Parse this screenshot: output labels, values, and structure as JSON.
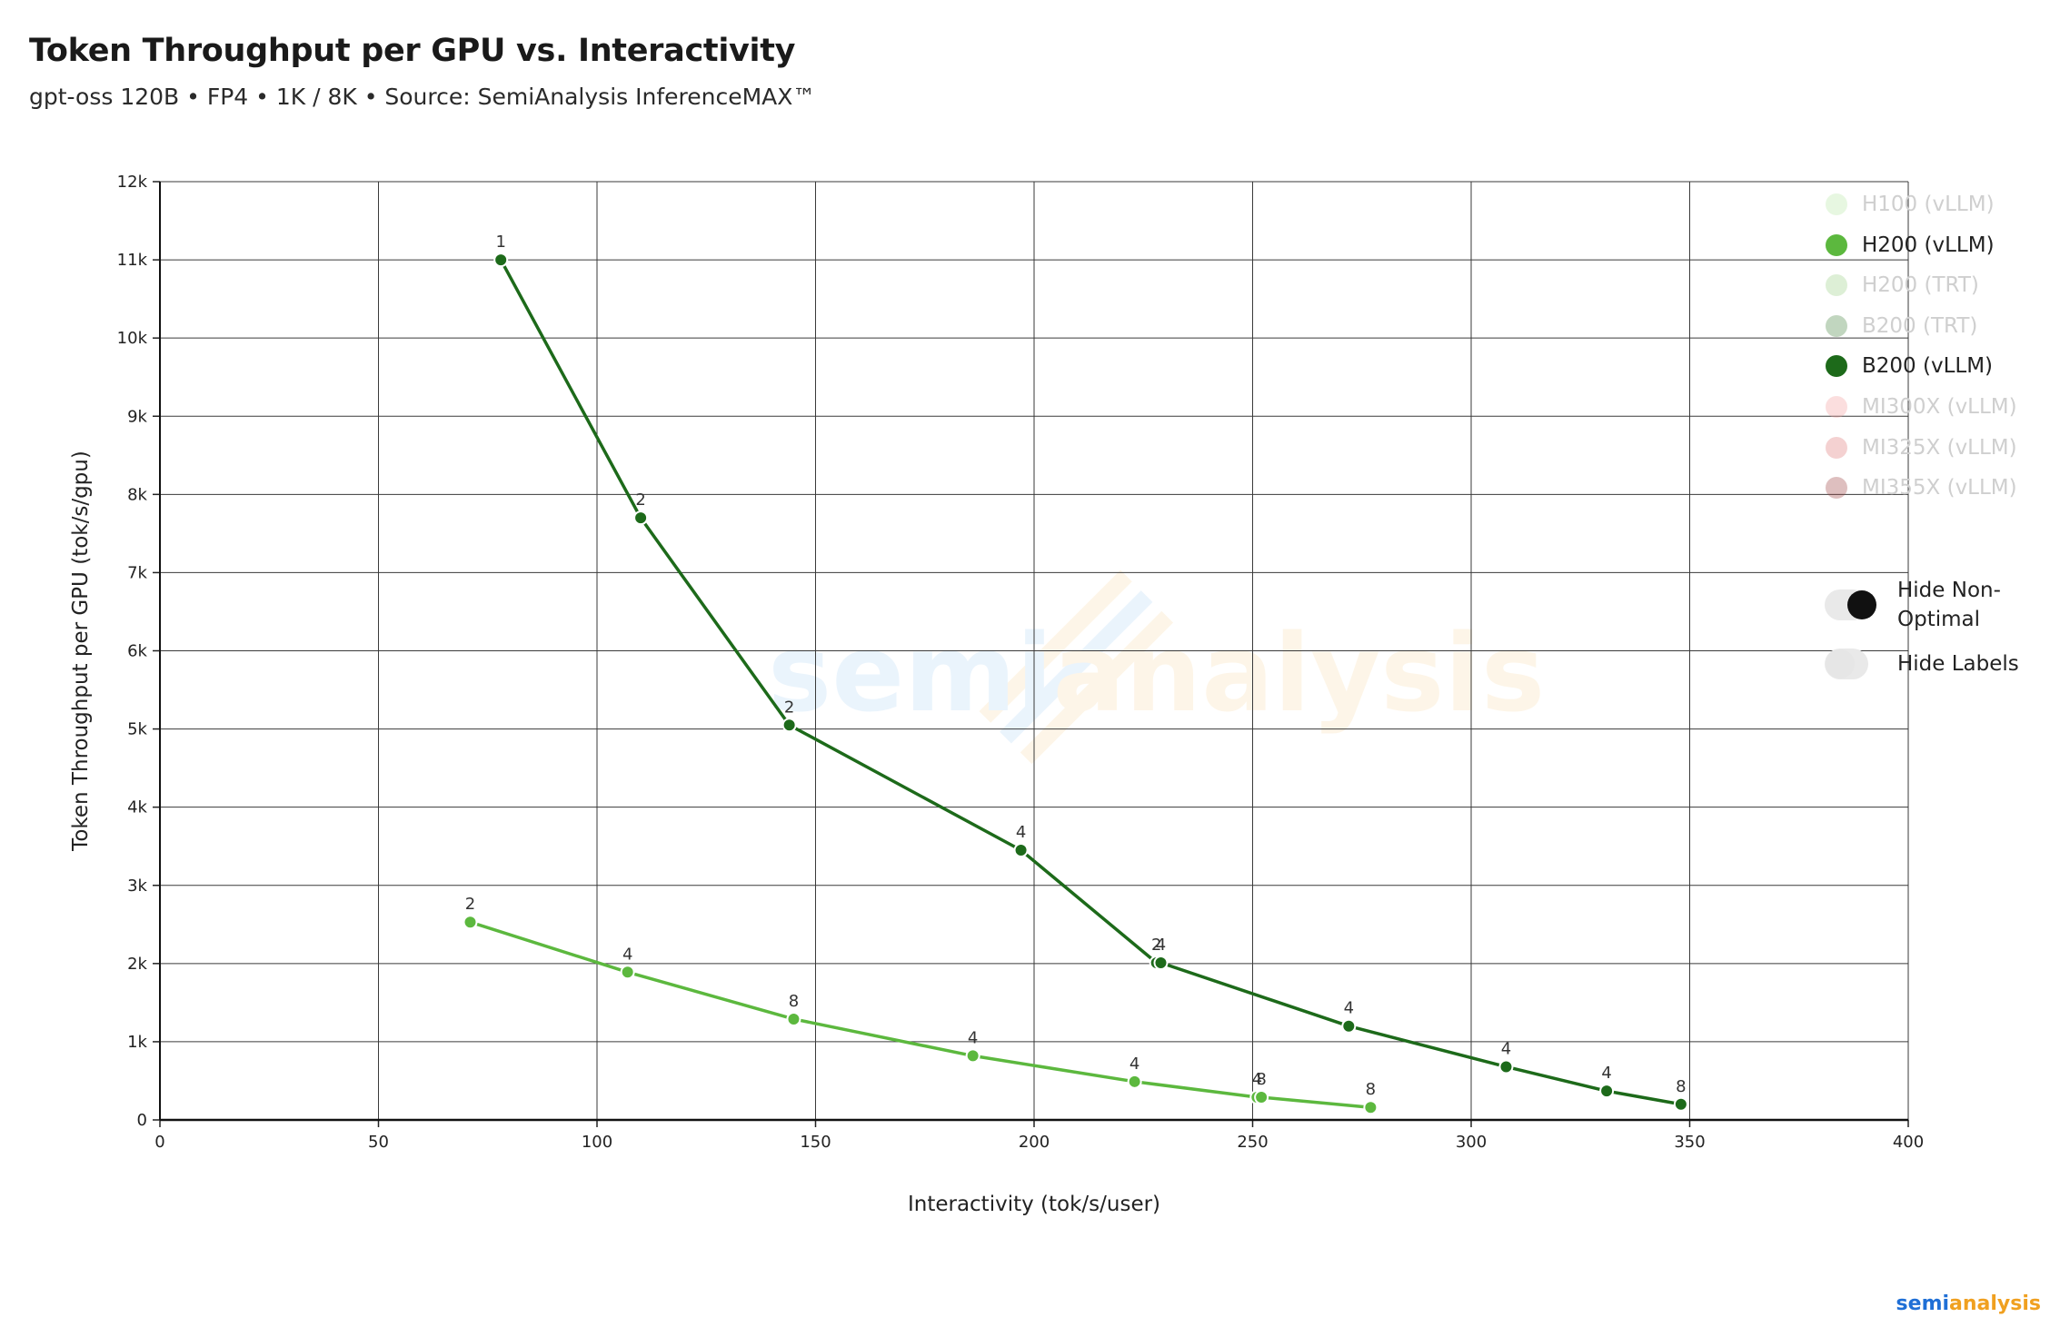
{
  "header": {
    "title": "Token Throughput per GPU vs. Interactivity",
    "subtitle": "gpt-oss 120B • FP4 • 1K / 8K • Source: SemiAnalysis InferenceMAX™"
  },
  "legend": {
    "items": [
      {
        "label": "H100 (vLLM)",
        "color": "#b9e8a8",
        "active": false
      },
      {
        "label": "H200 (vLLM)",
        "color": "#5cb83e",
        "active": true
      },
      {
        "label": "H200 (TRT)",
        "color": "#9ed08a",
        "active": false
      },
      {
        "label": "B200 (TRT)",
        "color": "#4c8a48",
        "active": false
      },
      {
        "label": "B200 (vLLM)",
        "color": "#1d6a1a",
        "active": true
      },
      {
        "label": "MI300X (vLLM)",
        "color": "#f4a0a0",
        "active": false
      },
      {
        "label": "MI325X (vLLM)",
        "color": "#e07a7a",
        "active": false
      },
      {
        "label": "MI355X (vLLM)",
        "color": "#a04848",
        "active": false
      }
    ]
  },
  "toggles": [
    {
      "label": "Hide Non-Optimal",
      "on": true,
      "knob_color": "#111111"
    },
    {
      "label": "Hide Labels",
      "on": false,
      "knob_color": "#e6e6e6"
    }
  ],
  "watermark": {
    "part1": "semi",
    "part2": "analysis"
  },
  "logo": {
    "part1": "semi",
    "part2": "analysis",
    "color1": "#1f6fd6",
    "color2": "#f0a020"
  },
  "chart_data": {
    "type": "line",
    "xlabel": "Interactivity (tok/s/user)",
    "ylabel": "Token Throughput per GPU (tok/s/gpu)",
    "xlim": [
      0,
      400
    ],
    "ylim": [
      0,
      12000
    ],
    "xticks": [
      0,
      50,
      100,
      150,
      200,
      250,
      300,
      350,
      400
    ],
    "yticks": [
      0,
      1000,
      2000,
      3000,
      4000,
      5000,
      6000,
      7000,
      8000,
      9000,
      10000,
      11000,
      12000
    ],
    "ytick_labels": [
      "0",
      "1k",
      "2k",
      "3k",
      "4k",
      "5k",
      "6k",
      "7k",
      "8k",
      "9k",
      "10k",
      "11k",
      "12k"
    ],
    "xtick_labels": [
      "0",
      "50",
      "100",
      "150",
      "200",
      "250",
      "300",
      "350",
      "400"
    ],
    "grid": true,
    "legend_position": "top-right",
    "series": [
      {
        "name": "B200 (vLLM)",
        "color": "#1d6a1a",
        "points": [
          {
            "x": 78,
            "y": 11000,
            "label": "1"
          },
          {
            "x": 110,
            "y": 7700,
            "label": "2"
          },
          {
            "x": 144,
            "y": 5050,
            "label": "2"
          },
          {
            "x": 197,
            "y": 3450,
            "label": "4"
          },
          {
            "x": 228,
            "y": 2010,
            "label": "2"
          },
          {
            "x": 229,
            "y": 2010,
            "label": "4"
          },
          {
            "x": 272,
            "y": 1200,
            "label": "4"
          },
          {
            "x": 308,
            "y": 680,
            "label": "4"
          },
          {
            "x": 331,
            "y": 370,
            "label": "4"
          },
          {
            "x": 348,
            "y": 200,
            "label": "8"
          }
        ]
      },
      {
        "name": "H200 (vLLM)",
        "color": "#5cb83e",
        "points": [
          {
            "x": 71,
            "y": 2530,
            "label": "2"
          },
          {
            "x": 107,
            "y": 1890,
            "label": "4"
          },
          {
            "x": 145,
            "y": 1290,
            "label": "8"
          },
          {
            "x": 186,
            "y": 820,
            "label": "4"
          },
          {
            "x": 223,
            "y": 490,
            "label": "4"
          },
          {
            "x": 251,
            "y": 290,
            "label": "4"
          },
          {
            "x": 252,
            "y": 290,
            "label": "8"
          },
          {
            "x": 277,
            "y": 160,
            "label": "8"
          }
        ]
      }
    ]
  }
}
